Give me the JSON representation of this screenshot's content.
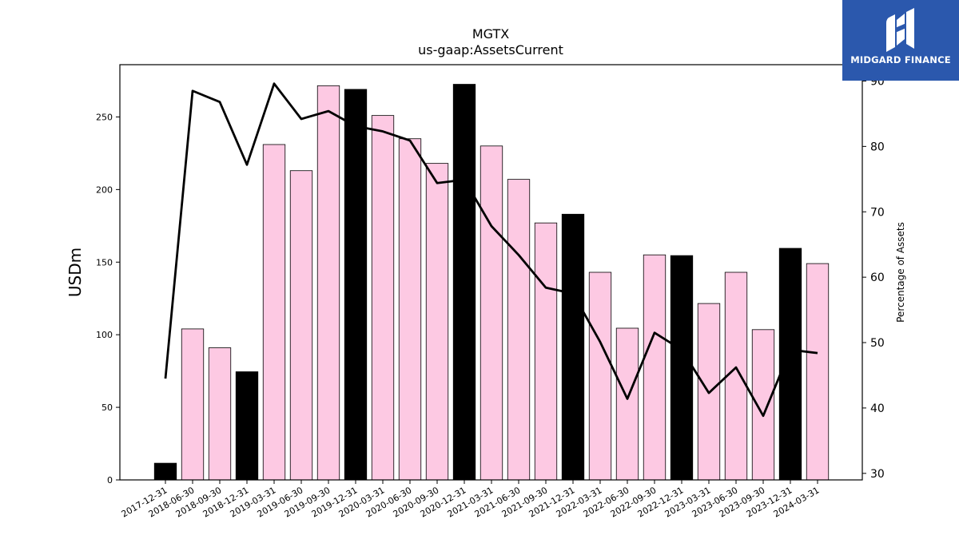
{
  "logo": {
    "text": "MIDGARD FINANCE"
  },
  "chart_data": {
    "type": "bar",
    "title": "MGTX",
    "subtitle": "us-gaap:AssetsCurrent",
    "ylabel": "USDm",
    "y2label": "Percentage of Assets",
    "ylim": [
      0,
      286
    ],
    "y2lim": [
      29,
      92.5
    ],
    "yticks": [
      0,
      50,
      100,
      150,
      200,
      250
    ],
    "y2ticks": [
      30,
      40,
      50,
      60,
      70,
      80,
      90
    ],
    "categories": [
      "2017-12-31",
      "2018-06-30",
      "2018-09-30",
      "2018-12-31",
      "2019-03-31",
      "2019-06-30",
      "2019-09-30",
      "2019-12-31",
      "2020-03-31",
      "2020-06-30",
      "2020-09-30",
      "2020-12-31",
      "2021-03-31",
      "2021-06-30",
      "2021-09-30",
      "2021-12-31",
      "2022-03-31",
      "2022-06-30",
      "2022-09-30",
      "2022-12-31",
      "2023-03-31",
      "2023-06-30",
      "2023-09-30",
      "2023-12-31",
      "2024-03-31"
    ],
    "series": [
      {
        "type": "bar",
        "values": [
          11.5,
          104,
          91,
          74.5,
          231,
          213,
          271.5,
          269,
          251,
          235,
          218,
          272.5,
          230,
          207,
          177,
          183,
          143,
          104.5,
          155,
          154.5,
          121.5,
          143,
          103.5,
          159.5,
          149
        ]
      },
      {
        "type": "line",
        "axis": "right",
        "values": [
          44.5,
          88.5,
          86.8,
          77.2,
          89.6,
          84.2,
          85.4,
          83.1,
          82.3,
          80.9,
          74.4,
          74.9,
          67.8,
          63.4,
          58.4,
          57.5,
          50.1,
          41.4,
          51.5,
          48.9,
          42.3,
          46.2,
          38.8,
          48.9,
          48.4
        ]
      }
    ],
    "colors": {
      "bar_quarter": "#fdc9e3",
      "bar_year_end": "#000000",
      "line": "#000000"
    },
    "grid": false
  }
}
